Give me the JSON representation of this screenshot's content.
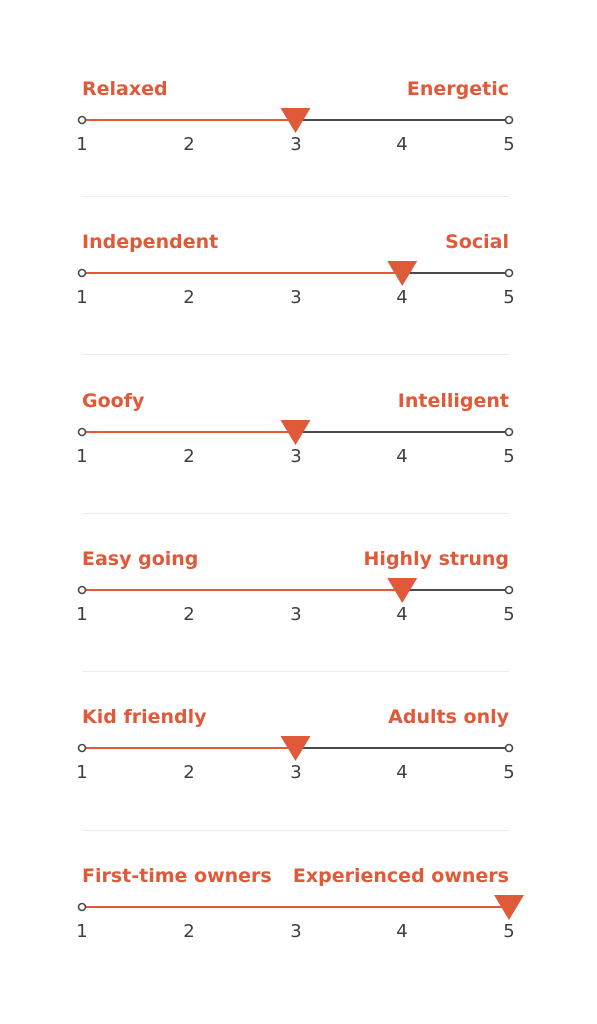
{
  "colors": {
    "accent": "#e05a3a",
    "track_inactive": "#4a4a4a",
    "text_numbers": "#3f3f3f",
    "divider": "#ececec"
  },
  "scale_numbers": [
    "1",
    "2",
    "3",
    "4",
    "5"
  ],
  "scales": [
    {
      "left_label": "Relaxed",
      "right_label": "Energetic",
      "value": 3
    },
    {
      "left_label": "Independent",
      "right_label": "Social",
      "value": 4
    },
    {
      "left_label": "Goofy",
      "right_label": "Intelligent",
      "value": 3
    },
    {
      "left_label": "Easy going",
      "right_label": "Highly strung",
      "value": 4
    },
    {
      "left_label": "Kid friendly",
      "right_label": "Adults only",
      "value": 3
    },
    {
      "left_label": "First-time owners",
      "right_label": "Experienced owners",
      "value": 5
    }
  ]
}
